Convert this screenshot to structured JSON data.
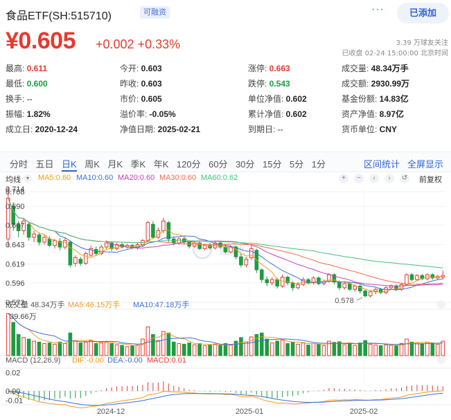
{
  "header": {
    "name": "食品ETF(SH:515710)",
    "margin_badge": "可融资",
    "more": "···",
    "follow_label": "已添加"
  },
  "quote": {
    "price": "¥0.605",
    "change": "+0.002 +0.33%",
    "followers": "3.39 万球友关注",
    "status": "已收盘 02-24 15:00:00 北京时间"
  },
  "stats": [
    {
      "label": "最高:",
      "value": "0.611",
      "color": "red"
    },
    {
      "label": "今开:",
      "value": "0.603",
      "color": "normal"
    },
    {
      "label": "涨停:",
      "value": "0.663",
      "color": "red"
    },
    {
      "label": "成交量:",
      "value": "48.34万手",
      "color": "normal"
    },
    {
      "label": "最低:",
      "value": "0.600",
      "color": "green"
    },
    {
      "label": "昨收:",
      "value": "0.603",
      "color": "normal"
    },
    {
      "label": "跌停:",
      "value": "0.543",
      "color": "green"
    },
    {
      "label": "成交额:",
      "value": "2930.99万",
      "color": "normal"
    },
    {
      "label": "换手:",
      "value": "--",
      "color": "plain"
    },
    {
      "label": "市价:",
      "value": "0.605",
      "color": "normal"
    },
    {
      "label": "单位净值:",
      "value": "0.602",
      "color": "normal"
    },
    {
      "label": "基金份额:",
      "value": "14.83亿",
      "color": "normal"
    },
    {
      "label": "振幅:",
      "value": "1.82%",
      "color": "normal"
    },
    {
      "label": "溢价率:",
      "value": "-0.05%",
      "color": "normal"
    },
    {
      "label": "累计净值:",
      "value": "0.602",
      "color": "normal"
    },
    {
      "label": "资产净值:",
      "value": "8.97亿",
      "color": "normal"
    },
    {
      "label": "成立日:",
      "value": "2020-12-24",
      "color": "normal"
    },
    {
      "label": "净值日期:",
      "value": "2025-02-21",
      "color": "normal"
    },
    {
      "label": "到期日:",
      "value": "--",
      "color": "plain"
    },
    {
      "label": "货币单位:",
      "value": "CNY",
      "color": "normal"
    }
  ],
  "tabs": [
    "分时",
    "五日",
    "日K",
    "周K",
    "月K",
    "季K",
    "年K",
    "120分",
    "60分",
    "30分",
    "15分",
    "5分",
    "1分"
  ],
  "active_tab": "日K",
  "tab_right": [
    "区间统计",
    "全屏显示"
  ],
  "legend": {
    "line_type": "均线",
    "ma5": "MA5:0.60",
    "ma10": "MA10:0.60",
    "ma20": "MA20:0.60",
    "ma30": "MA30:0.60",
    "ma60": "MA60:0.62",
    "adjust": "前复权"
  },
  "colors": {
    "up": "#e63a2e",
    "down": "#1f9c43",
    "ma5": "#f09a1a",
    "ma10": "#3a6fd8",
    "ma20": "#c43ec0",
    "ma30": "#f06a4a",
    "ma60": "#42c27a",
    "accent": "#2f63d6"
  },
  "volume_legend": {
    "title": "成交量 48.34万手",
    "ma5": "MA5:46.15万手",
    "ma10": "MA10:47.18万手"
  },
  "macd_legend": {
    "title": "MACD (12,26,9)",
    "dif": "DIF:-0.00",
    "dea": "DEA:-0.00",
    "macd": "MACD:0.01"
  },
  "watermark": "雪球",
  "chart_data": {
    "type": "candlestick",
    "y_ticks": [
      "0.708",
      "0.690",
      "0.667",
      "0.643",
      "0.619",
      "0.596",
      "0.572"
    ],
    "top_label": "0.714",
    "low_marker": "0.578",
    "ylim": [
      0.572,
      0.714
    ],
    "x_labels": [
      "2024-12",
      "2025-01",
      "2025-02"
    ],
    "volume_tick": "139.66万",
    "volume_max": 139.66,
    "macd_ticks": [
      "0.02",
      "0.00",
      "-0.01"
    ],
    "macd_ylim": [
      -0.015,
      0.025
    ],
    "candles": [
      {
        "o": 0.65,
        "c": 0.7,
        "h": 0.714,
        "l": 0.64,
        "v": 139
      },
      {
        "o": 0.69,
        "c": 0.668,
        "h": 0.695,
        "l": 0.66,
        "v": 110
      },
      {
        "o": 0.668,
        "c": 0.66,
        "h": 0.672,
        "l": 0.652,
        "v": 70
      },
      {
        "o": 0.66,
        "c": 0.672,
        "h": 0.676,
        "l": 0.655,
        "v": 60
      },
      {
        "o": 0.668,
        "c": 0.652,
        "h": 0.67,
        "l": 0.648,
        "v": 55
      },
      {
        "o": 0.652,
        "c": 0.656,
        "h": 0.66,
        "l": 0.646,
        "v": 48
      },
      {
        "o": 0.655,
        "c": 0.646,
        "h": 0.658,
        "l": 0.642,
        "v": 45
      },
      {
        "o": 0.646,
        "c": 0.652,
        "h": 0.655,
        "l": 0.643,
        "v": 40
      },
      {
        "o": 0.65,
        "c": 0.642,
        "h": 0.653,
        "l": 0.64,
        "v": 42
      },
      {
        "o": 0.642,
        "c": 0.648,
        "h": 0.65,
        "l": 0.638,
        "v": 38
      },
      {
        "o": 0.647,
        "c": 0.64,
        "h": 0.651,
        "l": 0.636,
        "v": 45
      },
      {
        "o": 0.64,
        "c": 0.648,
        "h": 0.652,
        "l": 0.637,
        "v": 40
      },
      {
        "o": 0.646,
        "c": 0.618,
        "h": 0.648,
        "l": 0.615,
        "v": 75
      },
      {
        "o": 0.62,
        "c": 0.627,
        "h": 0.63,
        "l": 0.616,
        "v": 50
      },
      {
        "o": 0.625,
        "c": 0.62,
        "h": 0.628,
        "l": 0.617,
        "v": 42
      },
      {
        "o": 0.62,
        "c": 0.632,
        "h": 0.634,
        "l": 0.618,
        "v": 45
      },
      {
        "o": 0.63,
        "c": 0.638,
        "h": 0.642,
        "l": 0.628,
        "v": 50
      },
      {
        "o": 0.637,
        "c": 0.632,
        "h": 0.641,
        "l": 0.629,
        "v": 40
      },
      {
        "o": 0.632,
        "c": 0.64,
        "h": 0.643,
        "l": 0.63,
        "v": 42
      },
      {
        "o": 0.64,
        "c": 0.645,
        "h": 0.648,
        "l": 0.637,
        "v": 46
      },
      {
        "o": 0.645,
        "c": 0.638,
        "h": 0.647,
        "l": 0.635,
        "v": 40
      },
      {
        "o": 0.638,
        "c": 0.643,
        "h": 0.645,
        "l": 0.636,
        "v": 36
      },
      {
        "o": 0.643,
        "c": 0.64,
        "h": 0.646,
        "l": 0.638,
        "v": 34
      },
      {
        "o": 0.64,
        "c": 0.642,
        "h": 0.644,
        "l": 0.638,
        "v": 30
      },
      {
        "o": 0.642,
        "c": 0.639,
        "h": 0.644,
        "l": 0.637,
        "v": 32
      },
      {
        "o": 0.639,
        "c": 0.643,
        "h": 0.646,
        "l": 0.637,
        "v": 35
      },
      {
        "o": 0.643,
        "c": 0.648,
        "h": 0.65,
        "l": 0.64,
        "v": 55
      },
      {
        "o": 0.648,
        "c": 0.67,
        "h": 0.672,
        "l": 0.646,
        "v": 95
      },
      {
        "o": 0.668,
        "c": 0.652,
        "h": 0.672,
        "l": 0.65,
        "v": 70
      },
      {
        "o": 0.652,
        "c": 0.66,
        "h": 0.664,
        "l": 0.65,
        "v": 50
      },
      {
        "o": 0.66,
        "c": 0.672,
        "h": 0.676,
        "l": 0.657,
        "v": 80
      },
      {
        "o": 0.67,
        "c": 0.65,
        "h": 0.672,
        "l": 0.646,
        "v": 75
      },
      {
        "o": 0.65,
        "c": 0.645,
        "h": 0.653,
        "l": 0.642,
        "v": 45
      },
      {
        "o": 0.645,
        "c": 0.65,
        "h": 0.652,
        "l": 0.643,
        "v": 40
      },
      {
        "o": 0.65,
        "c": 0.646,
        "h": 0.652,
        "l": 0.643,
        "v": 38
      },
      {
        "o": 0.646,
        "c": 0.641,
        "h": 0.648,
        "l": 0.638,
        "v": 42
      },
      {
        "o": 0.641,
        "c": 0.645,
        "h": 0.647,
        "l": 0.639,
        "v": 36
      },
      {
        "o": 0.645,
        "c": 0.638,
        "h": 0.647,
        "l": 0.636,
        "v": 40
      },
      {
        "o": 0.638,
        "c": 0.642,
        "h": 0.644,
        "l": 0.636,
        "v": 33
      },
      {
        "o": 0.642,
        "c": 0.639,
        "h": 0.645,
        "l": 0.637,
        "v": 35
      },
      {
        "o": 0.639,
        "c": 0.645,
        "h": 0.647,
        "l": 0.637,
        "v": 38
      },
      {
        "o": 0.645,
        "c": 0.64,
        "h": 0.647,
        "l": 0.638,
        "v": 34
      },
      {
        "o": 0.64,
        "c": 0.634,
        "h": 0.643,
        "l": 0.632,
        "v": 40
      },
      {
        "o": 0.634,
        "c": 0.64,
        "h": 0.642,
        "l": 0.632,
        "v": 35
      },
      {
        "o": 0.64,
        "c": 0.628,
        "h": 0.642,
        "l": 0.625,
        "v": 48
      },
      {
        "o": 0.628,
        "c": 0.618,
        "h": 0.632,
        "l": 0.615,
        "v": 60
      },
      {
        "o": 0.618,
        "c": 0.625,
        "h": 0.628,
        "l": 0.615,
        "v": 45
      },
      {
        "o": 0.627,
        "c": 0.638,
        "h": 0.642,
        "l": 0.624,
        "v": 62
      },
      {
        "o": 0.636,
        "c": 0.612,
        "h": 0.638,
        "l": 0.608,
        "v": 70
      },
      {
        "o": 0.612,
        "c": 0.6,
        "h": 0.614,
        "l": 0.596,
        "v": 75
      },
      {
        "o": 0.6,
        "c": 0.596,
        "h": 0.604,
        "l": 0.592,
        "v": 55
      },
      {
        "o": 0.596,
        "c": 0.6,
        "h": 0.603,
        "l": 0.593,
        "v": 42
      },
      {
        "o": 0.6,
        "c": 0.592,
        "h": 0.602,
        "l": 0.589,
        "v": 48
      },
      {
        "o": 0.592,
        "c": 0.603,
        "h": 0.606,
        "l": 0.59,
        "v": 52
      },
      {
        "o": 0.603,
        "c": 0.596,
        "h": 0.605,
        "l": 0.593,
        "v": 40
      },
      {
        "o": 0.596,
        "c": 0.59,
        "h": 0.598,
        "l": 0.586,
        "v": 45
      },
      {
        "o": 0.59,
        "c": 0.594,
        "h": 0.597,
        "l": 0.588,
        "v": 38
      },
      {
        "o": 0.594,
        "c": 0.6,
        "h": 0.603,
        "l": 0.592,
        "v": 42
      },
      {
        "o": 0.6,
        "c": 0.596,
        "h": 0.602,
        "l": 0.594,
        "v": 35
      },
      {
        "o": 0.596,
        "c": 0.602,
        "h": 0.604,
        "l": 0.594,
        "v": 40
      },
      {
        "o": 0.602,
        "c": 0.595,
        "h": 0.604,
        "l": 0.593,
        "v": 38
      },
      {
        "o": 0.595,
        "c": 0.598,
        "h": 0.6,
        "l": 0.593,
        "v": 33
      },
      {
        "o": 0.598,
        "c": 0.606,
        "h": 0.608,
        "l": 0.596,
        "v": 48
      },
      {
        "o": 0.606,
        "c": 0.597,
        "h": 0.608,
        "l": 0.594,
        "v": 44
      },
      {
        "o": 0.597,
        "c": 0.59,
        "h": 0.599,
        "l": 0.587,
        "v": 46
      },
      {
        "o": 0.59,
        "c": 0.595,
        "h": 0.597,
        "l": 0.588,
        "v": 36
      },
      {
        "o": 0.595,
        "c": 0.588,
        "h": 0.597,
        "l": 0.586,
        "v": 40
      },
      {
        "o": 0.588,
        "c": 0.592,
        "h": 0.594,
        "l": 0.585,
        "v": 34
      },
      {
        "o": 0.592,
        "c": 0.586,
        "h": 0.594,
        "l": 0.583,
        "v": 42
      },
      {
        "o": 0.586,
        "c": 0.58,
        "h": 0.588,
        "l": 0.578,
        "v": 50
      },
      {
        "o": 0.58,
        "c": 0.585,
        "h": 0.587,
        "l": 0.578,
        "v": 38
      },
      {
        "o": 0.585,
        "c": 0.588,
        "h": 0.59,
        "l": 0.582,
        "v": 35
      },
      {
        "o": 0.588,
        "c": 0.584,
        "h": 0.59,
        "l": 0.582,
        "v": 33
      },
      {
        "o": 0.584,
        "c": 0.59,
        "h": 0.592,
        "l": 0.582,
        "v": 36
      },
      {
        "o": 0.59,
        "c": 0.592,
        "h": 0.594,
        "l": 0.588,
        "v": 34
      },
      {
        "o": 0.592,
        "c": 0.588,
        "h": 0.594,
        "l": 0.586,
        "v": 32
      },
      {
        "o": 0.588,
        "c": 0.594,
        "h": 0.596,
        "l": 0.586,
        "v": 40
      },
      {
        "o": 0.594,
        "c": 0.606,
        "h": 0.608,
        "l": 0.592,
        "v": 55
      },
      {
        "o": 0.606,
        "c": 0.6,
        "h": 0.608,
        "l": 0.598,
        "v": 45
      },
      {
        "o": 0.6,
        "c": 0.605,
        "h": 0.607,
        "l": 0.598,
        "v": 42
      },
      {
        "o": 0.605,
        "c": 0.601,
        "h": 0.607,
        "l": 0.599,
        "v": 40
      },
      {
        "o": 0.601,
        "c": 0.606,
        "h": 0.608,
        "l": 0.599,
        "v": 44
      },
      {
        "o": 0.606,
        "c": 0.602,
        "h": 0.608,
        "l": 0.6,
        "v": 41
      },
      {
        "o": 0.602,
        "c": 0.604,
        "h": 0.606,
        "l": 0.6,
        "v": 38
      },
      {
        "o": 0.603,
        "c": 0.605,
        "h": 0.611,
        "l": 0.6,
        "v": 48
      }
    ]
  }
}
